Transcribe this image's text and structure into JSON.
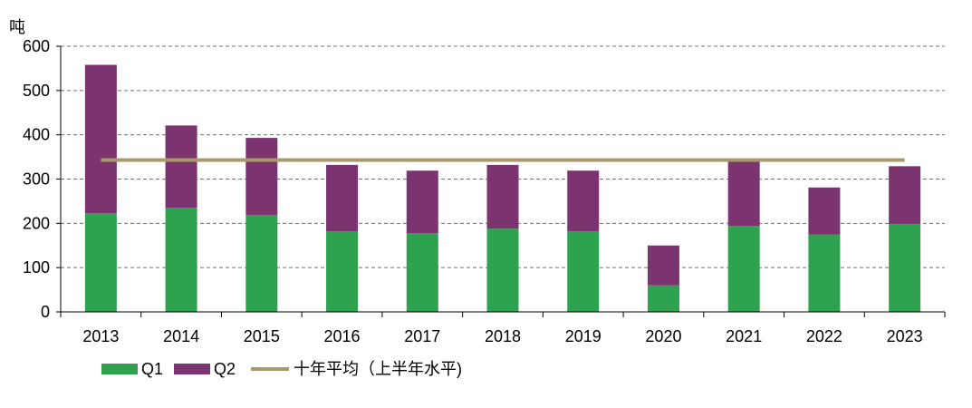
{
  "chart_data": {
    "type": "bar",
    "stacked": true,
    "ylabel": "吨",
    "ylim": [
      0,
      600
    ],
    "yticks": [
      0,
      100,
      200,
      300,
      400,
      500,
      600
    ],
    "grid": true,
    "categories": [
      "2013",
      "2014",
      "2015",
      "2016",
      "2017",
      "2018",
      "2019",
      "2020",
      "2021",
      "2022",
      "2023"
    ],
    "series": [
      {
        "name": "Q1",
        "type": "bar",
        "color": "#2ea24f",
        "values": [
          223,
          235,
          219,
          182,
          178,
          188,
          182,
          60,
          194,
          175,
          198
        ]
      },
      {
        "name": "Q2",
        "type": "bar",
        "color": "#7b3470",
        "values": [
          335,
          186,
          174,
          150,
          141,
          144,
          137,
          90,
          148,
          106,
          131
        ]
      },
      {
        "name": "十年平均（上半年水平）",
        "type": "line",
        "color": "#a89a6c",
        "values": [
          343,
          343,
          343,
          343,
          343,
          343,
          343,
          343,
          343,
          343,
          343
        ]
      }
    ],
    "legend": {
      "position": "bottom-left",
      "items": [
        {
          "label": "Q1",
          "color": "#2ea24f"
        },
        {
          "label": "Q2",
          "color": "#7b3470"
        },
        {
          "label": "十年平均（上半年水平)",
          "color": "#a89a6c"
        }
      ]
    }
  }
}
